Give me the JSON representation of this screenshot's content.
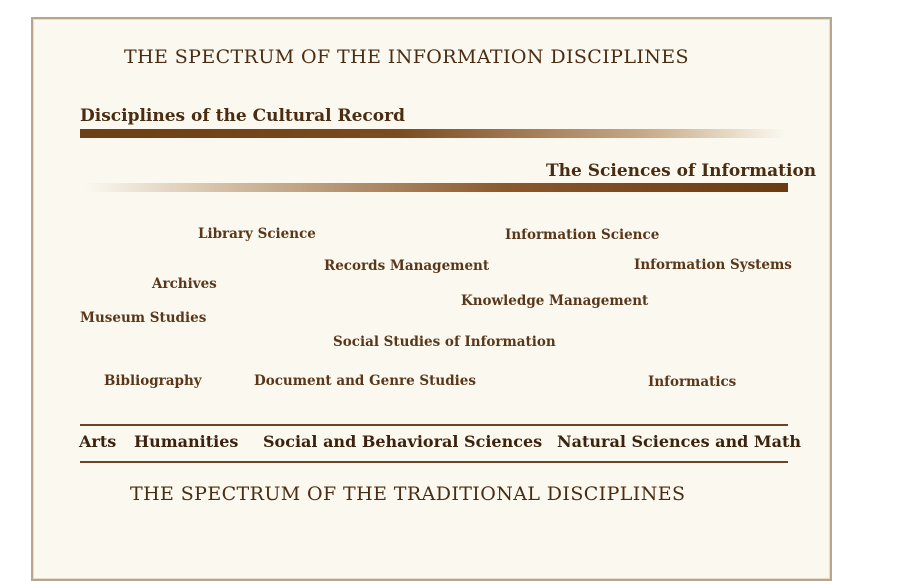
{
  "title_top": "THE SPECTRUM OF THE INFORMATION DISCIPLINES",
  "left_heading": "Disciplines of the Cultural Record",
  "right_heading": "The Sciences of Information",
  "disciplines": [
    {
      "id": "library-science",
      "label": "Library Science"
    },
    {
      "id": "information-science",
      "label": "Information Science"
    },
    {
      "id": "records-management",
      "label": "Records Management"
    },
    {
      "id": "information-systems",
      "label": "Information Systems"
    },
    {
      "id": "archives",
      "label": "Archives"
    },
    {
      "id": "knowledge-management",
      "label": "Knowledge Management"
    },
    {
      "id": "museum-studies",
      "label": "Museum Studies"
    },
    {
      "id": "social-studies-of-information",
      "label": "Social Studies of Information"
    },
    {
      "id": "bibliography",
      "label": "Bibliography"
    },
    {
      "id": "document-and-genre-studies",
      "label": "Document and Genre Studies"
    },
    {
      "id": "informatics",
      "label": "Informatics"
    }
  ],
  "traditional": [
    {
      "id": "arts",
      "label": "Arts"
    },
    {
      "id": "humanities",
      "label": "Humanities"
    },
    {
      "id": "social-behavioral",
      "label": "Social and Behavioral Sciences"
    },
    {
      "id": "natural-sciences",
      "label": "Natural Sciences and Math"
    }
  ],
  "title_bottom": "THE SPECTRUM OF THE TRADITIONAL DISCIPLINES",
  "colors": {
    "text": "#4a2c12",
    "bar": "#6e3e14",
    "panel_bg": "#fbf8ef",
    "border": "#b9a58c"
  }
}
